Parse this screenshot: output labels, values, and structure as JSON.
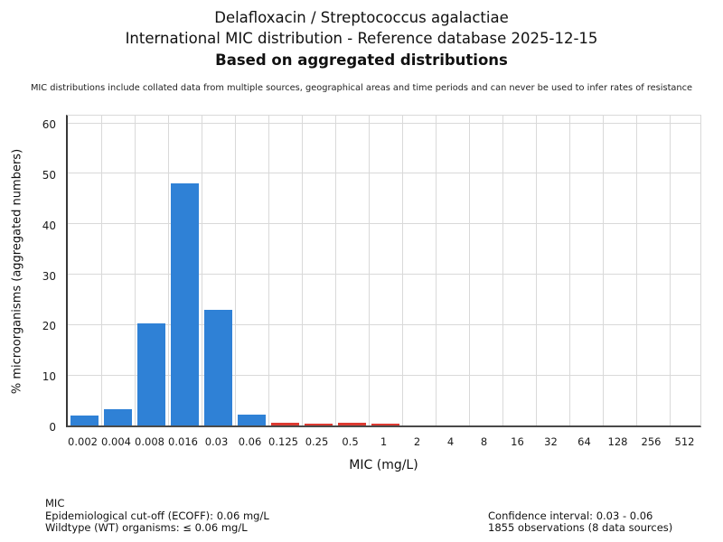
{
  "header": {
    "title_line1": "Delafloxacin / Streptococcus agalactiae",
    "title_line2": "International MIC distribution - Reference database 2025-12-15",
    "title_line3": "Based on aggregated distributions",
    "disclaimer": "MIC distributions include collated data from multiple sources, geographical areas and time periods and can never be used to infer rates of resistance"
  },
  "chart_data": {
    "type": "bar",
    "title": "Delafloxacin / Streptococcus agalactiae - International MIC distribution",
    "xlabel": "MIC (mg/L)",
    "ylabel": "% microorganisms (aggregated numbers)",
    "categories": [
      "0.002",
      "0.004",
      "0.008",
      "0.016",
      "0.03",
      "0.06",
      "0.125",
      "0.25",
      "0.5",
      "1",
      "2",
      "4",
      "8",
      "16",
      "32",
      "64",
      "128",
      "256",
      "512"
    ],
    "values": [
      2.0,
      3.3,
      20.3,
      48.1,
      22.9,
      2.1,
      0.5,
      0.3,
      0.5,
      0.3,
      0,
      0,
      0,
      0,
      0,
      0,
      0,
      0,
      0
    ],
    "yticks": [
      0,
      10,
      20,
      30,
      40,
      50,
      60
    ],
    "ylim": [
      0,
      62
    ],
    "grid": true,
    "legend_position": "none",
    "wildtype_max_category": "0.06",
    "wildtype_color": "#2f81d6",
    "non_wildtype_color": "#dc3a32",
    "gridline_color": "#d9d9d9"
  },
  "footer": {
    "left": [
      "MIC",
      "Epidemiological cut-off (ECOFF): 0.06 mg/L",
      "Wildtype (WT) organisms: ≤ 0.06 mg/L"
    ],
    "right": [
      "Confidence interval: 0.03 - 0.06",
      "1855 observations (8 data sources)"
    ]
  }
}
